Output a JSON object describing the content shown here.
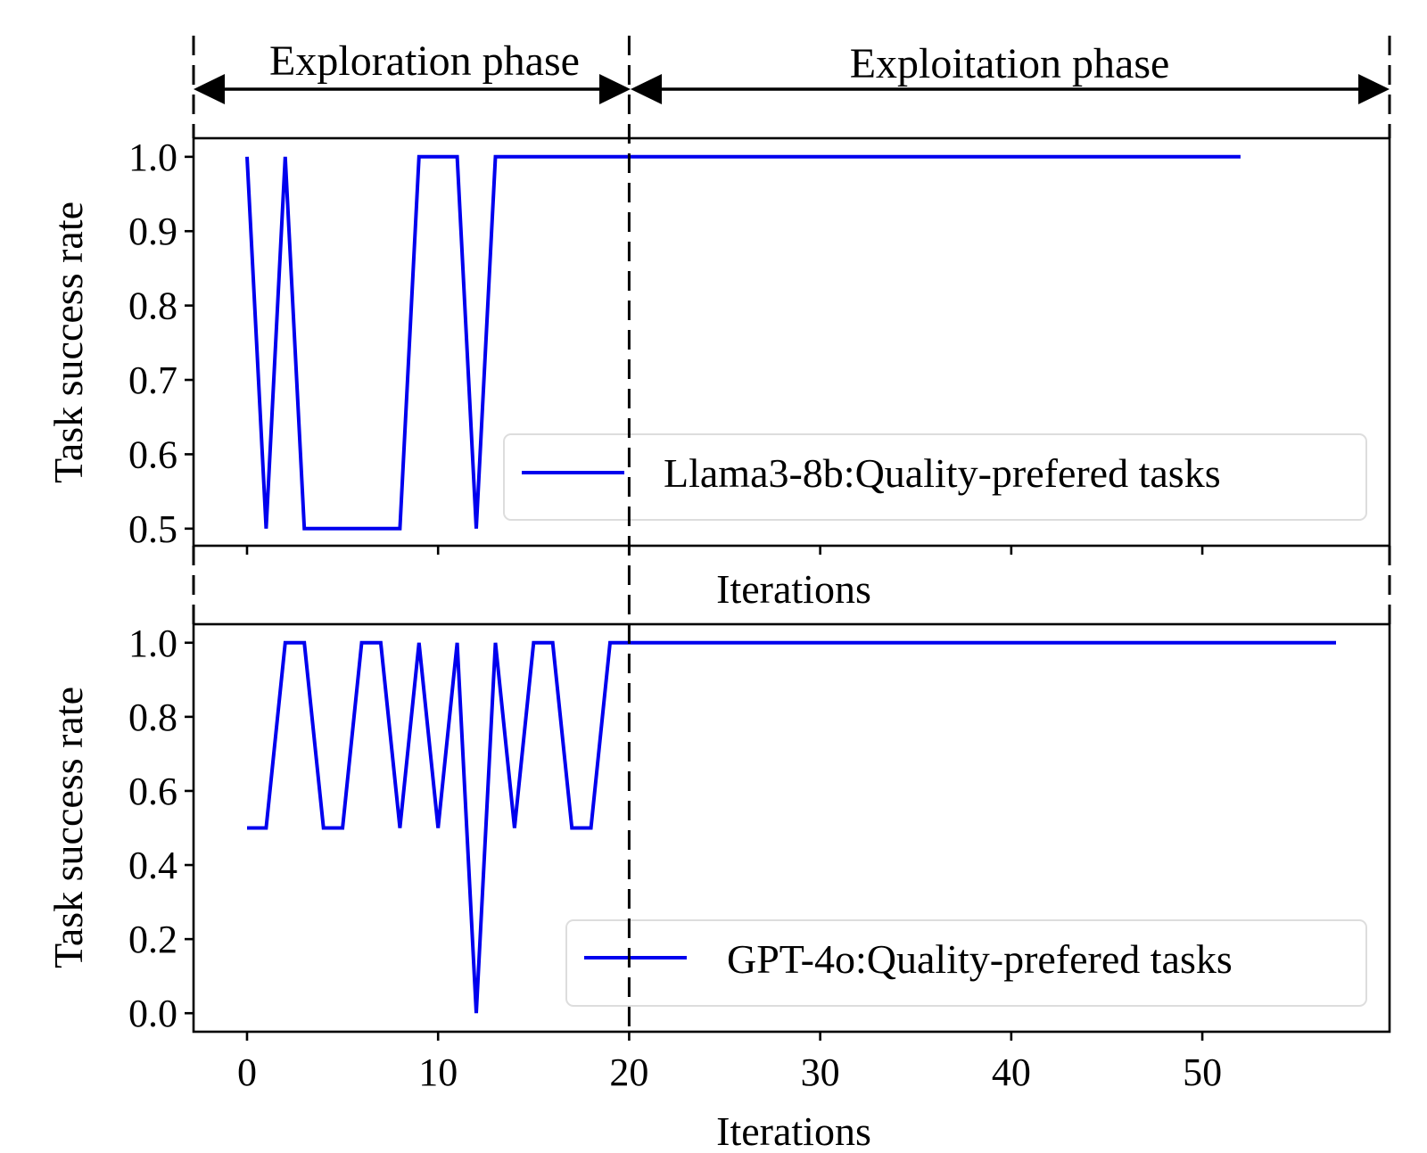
{
  "colors": {
    "series": "#0000ee",
    "axis": "#000000",
    "legend_border": "#dddddd"
  },
  "phases": {
    "exploration_label": "Exploration phase",
    "exploitation_label": "Exploitation phase",
    "boundary_x": 20
  },
  "chart_data": [
    {
      "type": "line",
      "xlabel": "Iterations",
      "ylabel": "Task success rate",
      "xlim": [
        -2.8,
        59.8
      ],
      "ylim": [
        0.477,
        1.025
      ],
      "yticks": [
        0.5,
        0.6,
        0.7,
        0.8,
        0.9,
        1.0
      ],
      "ytick_labels": [
        "0.5",
        "0.6",
        "0.7",
        "0.8",
        "0.9",
        "1.0"
      ],
      "xticks": [
        0,
        10,
        20,
        30,
        40,
        50
      ],
      "xtick_labels_visible": false,
      "grid": false,
      "legend_position": "right",
      "series": [
        {
          "name": "Llama3-8b:Quality-prefered tasks",
          "x": [
            0,
            1,
            2,
            3,
            4,
            5,
            6,
            7,
            8,
            9,
            10,
            11,
            12,
            13,
            14,
            15,
            16,
            17,
            18,
            19,
            20,
            21,
            22,
            23,
            24,
            25,
            26,
            27,
            28,
            29,
            30,
            31,
            32,
            33,
            34,
            35,
            36,
            37,
            38,
            39,
            40,
            41,
            42,
            43,
            44,
            45,
            46,
            47,
            48,
            49,
            50,
            51,
            52
          ],
          "y": [
            1.0,
            0.5,
            1.0,
            0.5,
            0.5,
            0.5,
            0.5,
            0.5,
            0.5,
            1.0,
            1.0,
            1.0,
            0.5,
            1.0,
            1.0,
            1.0,
            1.0,
            1.0,
            1.0,
            1.0,
            1.0,
            1.0,
            1.0,
            1.0,
            1.0,
            1.0,
            1.0,
            1.0,
            1.0,
            1.0,
            1.0,
            1.0,
            1.0,
            1.0,
            1.0,
            1.0,
            1.0,
            1.0,
            1.0,
            1.0,
            1.0,
            1.0,
            1.0,
            1.0,
            1.0,
            1.0,
            1.0,
            1.0,
            1.0,
            1.0,
            1.0,
            1.0,
            1.0
          ]
        }
      ]
    },
    {
      "type": "line",
      "xlabel": "Iterations",
      "ylabel": "Task success rate",
      "xlim": [
        -2.8,
        59.8
      ],
      "ylim": [
        -0.05,
        1.05
      ],
      "yticks": [
        0.0,
        0.2,
        0.4,
        0.6,
        0.8,
        1.0
      ],
      "ytick_labels": [
        "0.0",
        "0.2",
        "0.4",
        "0.6",
        "0.8",
        "1.0"
      ],
      "xticks": [
        0,
        10,
        20,
        30,
        40,
        50
      ],
      "xtick_labels": [
        "0",
        "10",
        "20",
        "30",
        "40",
        "50"
      ],
      "grid": false,
      "legend_position": "lower right",
      "series": [
        {
          "name": "GPT-4o:Quality-prefered tasks",
          "x": [
            0,
            1,
            2,
            3,
            4,
            5,
            6,
            7,
            8,
            9,
            10,
            11,
            12,
            13,
            14,
            15,
            16,
            17,
            18,
            19,
            20,
            21,
            22,
            23,
            24,
            25,
            26,
            27,
            28,
            29,
            30,
            31,
            32,
            33,
            34,
            35,
            36,
            37,
            38,
            39,
            40,
            41,
            42,
            43,
            44,
            45,
            46,
            47,
            48,
            49,
            50,
            51,
            52,
            53,
            54,
            55,
            56,
            57
          ],
          "y": [
            0.5,
            0.5,
            1.0,
            1.0,
            0.5,
            0.5,
            1.0,
            1.0,
            0.5,
            1.0,
            0.5,
            1.0,
            0.0,
            1.0,
            0.5,
            1.0,
            1.0,
            0.5,
            0.5,
            1.0,
            1.0,
            1.0,
            1.0,
            1.0,
            1.0,
            1.0,
            1.0,
            1.0,
            1.0,
            1.0,
            1.0,
            1.0,
            1.0,
            1.0,
            1.0,
            1.0,
            1.0,
            1.0,
            1.0,
            1.0,
            1.0,
            1.0,
            1.0,
            1.0,
            1.0,
            1.0,
            1.0,
            1.0,
            1.0,
            1.0,
            1.0,
            1.0,
            1.0,
            1.0,
            1.0,
            1.0,
            1.0,
            1.0
          ]
        }
      ]
    }
  ]
}
